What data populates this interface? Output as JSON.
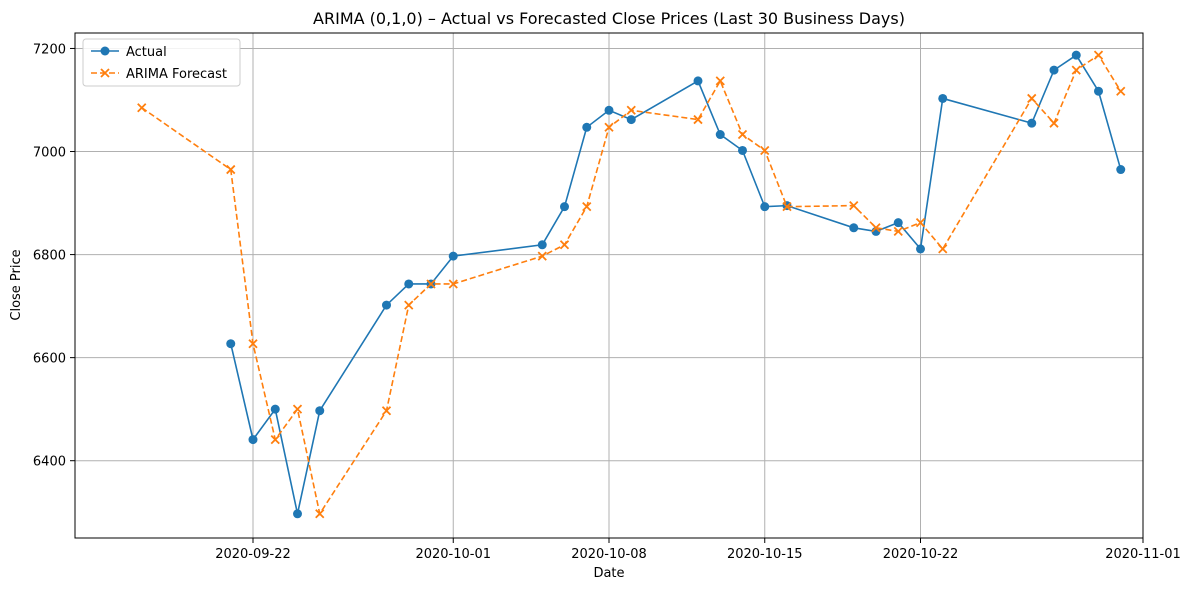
{
  "chart_data": {
    "type": "line",
    "title": "ARIMA (0,1,0) – Actual vs Forecasted Close Prices (Last 30 Business Days)",
    "xlabel": "Date",
    "ylabel": "Close Price",
    "xlim": [
      "2020-09-14",
      "2020-11-01"
    ],
    "ylim": [
      6250,
      7230
    ],
    "x_ticks": [
      "2020-09-22",
      "2020-10-01",
      "2020-10-08",
      "2020-10-15",
      "2020-10-22",
      "2020-11-01"
    ],
    "y_ticks": [
      6400,
      6600,
      6800,
      7000,
      7200
    ],
    "grid": true,
    "legend_position": "top-left",
    "series": [
      {
        "name": "Actual",
        "color": "#1f77b4",
        "marker": "circle",
        "linestyle": "solid",
        "points": [
          [
            "2020-09-21",
            6627
          ],
          [
            "2020-09-22",
            6441
          ],
          [
            "2020-09-23",
            6500
          ],
          [
            "2020-09-24",
            6297
          ],
          [
            "2020-09-25",
            6497
          ],
          [
            "2020-09-28",
            6702
          ],
          [
            "2020-09-29",
            6743
          ],
          [
            "2020-09-30",
            6743
          ],
          [
            "2020-10-01",
            6797
          ],
          [
            "2020-10-05",
            6819
          ],
          [
            "2020-10-06",
            6893
          ],
          [
            "2020-10-07",
            7047
          ],
          [
            "2020-10-08",
            7080
          ],
          [
            "2020-10-09",
            7062
          ],
          [
            "2020-10-12",
            7137
          ],
          [
            "2020-10-13",
            7033
          ],
          [
            "2020-10-14",
            7002
          ],
          [
            "2020-10-15",
            6893
          ],
          [
            "2020-10-16",
            6895
          ],
          [
            "2020-10-19",
            6852
          ],
          [
            "2020-10-20",
            6845
          ],
          [
            "2020-10-21",
            6862
          ],
          [
            "2020-10-22",
            6811
          ],
          [
            "2020-10-23",
            7103
          ],
          [
            "2020-10-27",
            7055
          ],
          [
            "2020-10-28",
            7158
          ],
          [
            "2020-10-29",
            7187
          ],
          [
            "2020-10-30",
            7117
          ],
          [
            "2020-10-31",
            6965
          ]
        ]
      },
      {
        "name": "ARIMA Forecast",
        "color": "#ff7f0e",
        "marker": "x",
        "linestyle": "dashed",
        "points": [
          [
            "2020-09-17",
            7085
          ],
          [
            "2020-09-21",
            6965
          ],
          [
            "2020-09-22",
            6627
          ],
          [
            "2020-09-23",
            6441
          ],
          [
            "2020-09-24",
            6500
          ],
          [
            "2020-09-25",
            6297
          ],
          [
            "2020-09-28",
            6497
          ],
          [
            "2020-09-29",
            6702
          ],
          [
            "2020-09-30",
            6743
          ],
          [
            "2020-10-01",
            6743
          ],
          [
            "2020-10-05",
            6797
          ],
          [
            "2020-10-06",
            6819
          ],
          [
            "2020-10-07",
            6893
          ],
          [
            "2020-10-08",
            7047
          ],
          [
            "2020-10-09",
            7080
          ],
          [
            "2020-10-12",
            7062
          ],
          [
            "2020-10-13",
            7137
          ],
          [
            "2020-10-14",
            7033
          ],
          [
            "2020-10-15",
            7002
          ],
          [
            "2020-10-16",
            6893
          ],
          [
            "2020-10-19",
            6895
          ],
          [
            "2020-10-20",
            6852
          ],
          [
            "2020-10-21",
            6845
          ],
          [
            "2020-10-22",
            6862
          ],
          [
            "2020-10-23",
            6811
          ],
          [
            "2020-10-27",
            7103
          ],
          [
            "2020-10-28",
            7055
          ],
          [
            "2020-10-29",
            7158
          ],
          [
            "2020-10-30",
            7187
          ],
          [
            "2020-10-31",
            7117
          ]
        ]
      }
    ]
  }
}
